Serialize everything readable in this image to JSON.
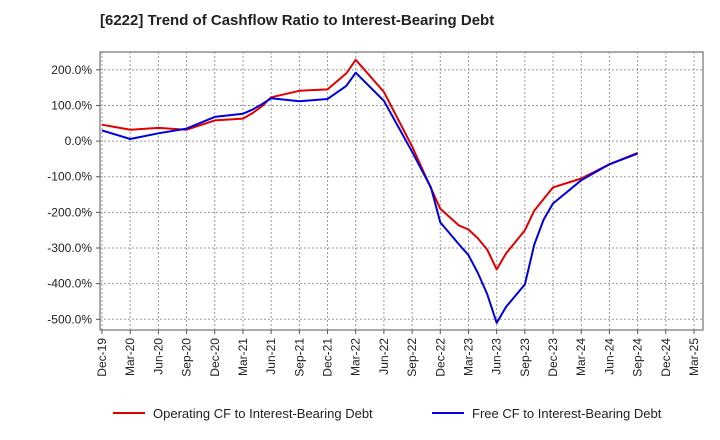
{
  "chart_data": {
    "type": "line",
    "title": "[6222]  Trend of Cashflow Ratio to Interest-Bearing Debt",
    "xlabel": "",
    "ylabel": "",
    "ylim": [
      -530,
      250
    ],
    "y_ticks": [
      200,
      100,
      0,
      -100,
      -200,
      -300,
      -400,
      -500
    ],
    "y_tick_labels": [
      "200.0%",
      "100.0%",
      "0.0%",
      "-100.0%",
      "-200.0%",
      "-300.0%",
      "-400.0%",
      "-500.0%"
    ],
    "x_tick_labels": [
      "Dec-19",
      "Mar-20",
      "Jun-20",
      "Sep-20",
      "Dec-20",
      "Mar-21",
      "Jun-21",
      "Sep-21",
      "Dec-21",
      "Mar-22",
      "Jun-22",
      "Sep-22",
      "Dec-22",
      "Mar-23",
      "Jun-23",
      "Sep-23",
      "Dec-23",
      "Mar-24",
      "Jun-24",
      "Sep-24",
      "Dec-24",
      "Mar-25"
    ],
    "grid": true,
    "legend_position": "bottom",
    "series": [
      {
        "name": "Operating CF to Interest-Bearing Debt",
        "color": "#e00000",
        "x": [
          "Dec-19",
          "Mar-20",
          "Jun-20",
          "Sep-20",
          "Dec-20",
          "Mar-21",
          "Apr-21",
          "May-21",
          "Jun-21",
          "Sep-21",
          "Dec-21",
          "Feb-22",
          "Mar-22",
          "Jun-22",
          "Sep-22",
          "Dec-22",
          "Feb-23",
          "Mar-23",
          "Apr-23",
          "May-23",
          "Jun-23",
          "Jul-23",
          "Sep-23",
          "Oct-23",
          "Dec-23",
          "Mar-24",
          "Jun-24",
          "Sep-24"
        ],
        "values": [
          46,
          32,
          37,
          32,
          58,
          63,
          78,
          97,
          123,
          141,
          145,
          190,
          228,
          138,
          -15,
          -190,
          -237,
          -248,
          -273,
          -305,
          -360,
          -315,
          -250,
          -195,
          -130,
          -105,
          -65,
          -33
        ]
      },
      {
        "name": "Free CF to Interest-Bearing Debt",
        "color": "#0000e0",
        "x": [
          "Dec-19",
          "Mar-20",
          "Jun-20",
          "Sep-20",
          "Dec-20",
          "Mar-21",
          "Apr-21",
          "May-21",
          "Jun-21",
          "Sep-21",
          "Dec-21",
          "Feb-22",
          "Mar-22",
          "Jun-22",
          "Sep-22",
          "Nov-22",
          "Dec-22",
          "Feb-23",
          "Mar-23",
          "Apr-23",
          "May-23",
          "Jun-23",
          "Jul-23",
          "Sep-23",
          "Oct-23",
          "Nov-23",
          "Dec-23",
          "Mar-24",
          "Jun-24",
          "Sep-24"
        ],
        "values": [
          30,
          6,
          22,
          35,
          68,
          77,
          88,
          103,
          120,
          112,
          118,
          155,
          192,
          113,
          -30,
          -130,
          -228,
          -290,
          -320,
          -370,
          -430,
          -510,
          -465,
          -402,
          -290,
          -220,
          -175,
          -110,
          -65,
          -35
        ]
      }
    ]
  }
}
